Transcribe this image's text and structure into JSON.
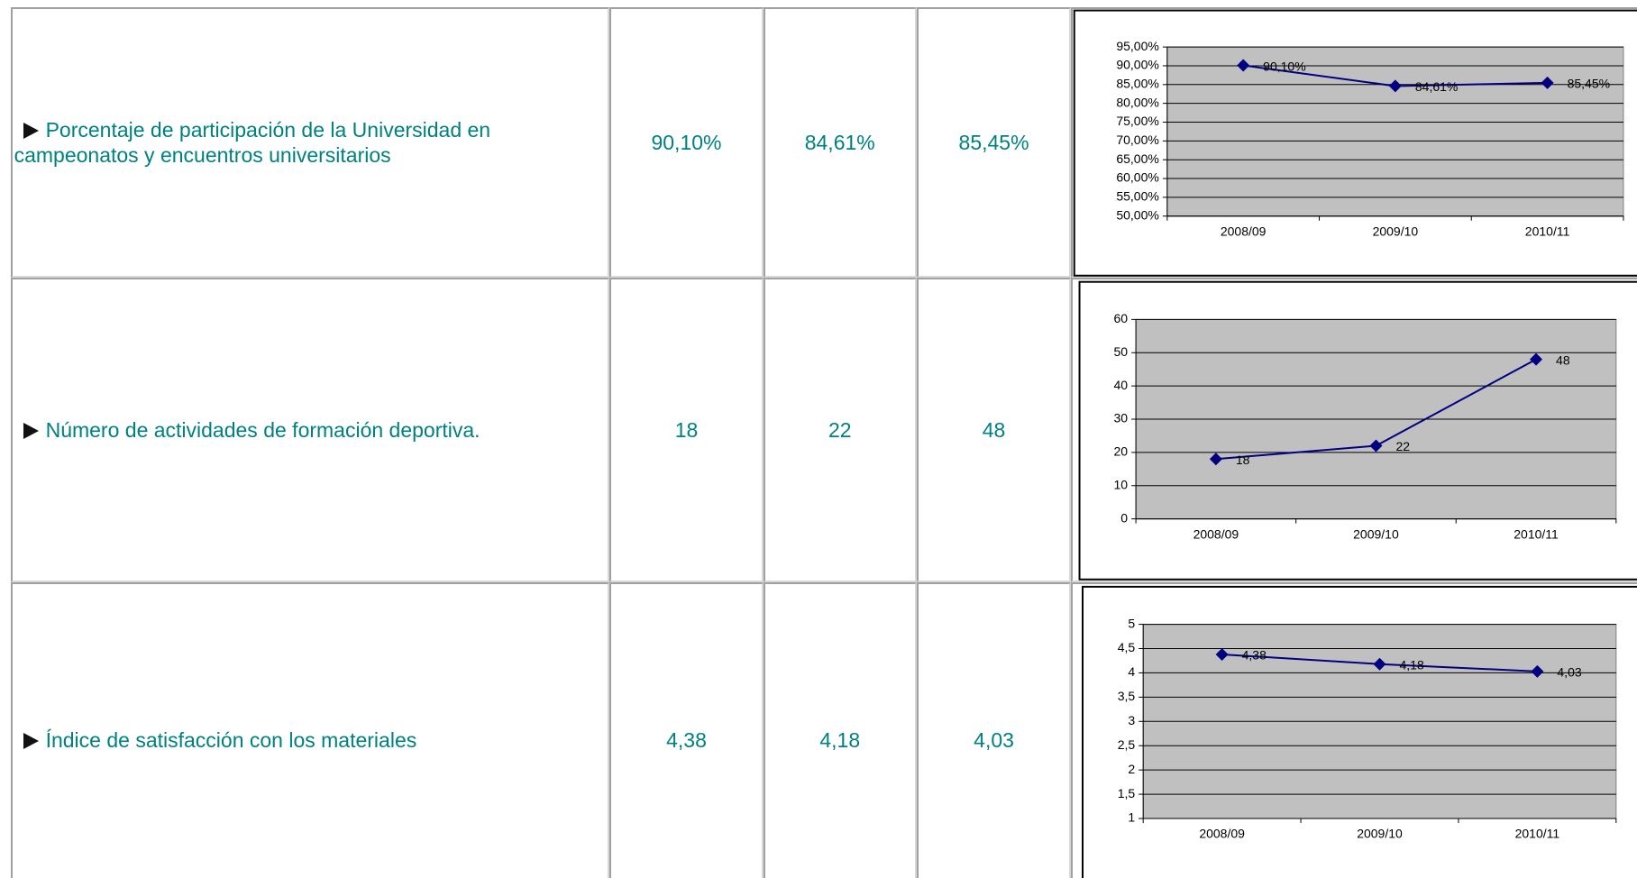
{
  "table": {
    "rows": [
      {
        "label": "Porcentaje de participación de la Universidad en campeonatos y encuentros universitarios",
        "cells": [
          "90,10%",
          "84,61%",
          "85,45%"
        ]
      },
      {
        "label": "Número de actividades de formación deportiva.",
        "cells": [
          "18",
          "22",
          "48"
        ]
      },
      {
        "label": "Índice de satisfacción con los materiales",
        "cells": [
          "4,38",
          "4,18",
          "4,03"
        ]
      }
    ]
  },
  "chart_data": [
    {
      "type": "line",
      "categories": [
        "2008/09",
        "2009/10",
        "2010/11"
      ],
      "values": [
        90.1,
        84.61,
        85.45
      ],
      "value_labels": [
        "90,10%",
        "84,61%",
        "85,45%"
      ],
      "color": "#000080",
      "grid": true,
      "ylim": [
        50,
        95
      ],
      "yticks": [
        {
          "value": 50,
          "label": "50,00%"
        },
        {
          "value": 55,
          "label": "55,00%"
        },
        {
          "value": 60,
          "label": "60,00%"
        },
        {
          "value": 65,
          "label": "65,00%"
        },
        {
          "value": 70,
          "label": "70,00%"
        },
        {
          "value": 75,
          "label": "75,00%"
        },
        {
          "value": 80,
          "label": "80,00%"
        },
        {
          "value": 85,
          "label": "85,00%"
        },
        {
          "value": 90,
          "label": "90,00%"
        },
        {
          "value": 95,
          "label": "95,00%"
        }
      ]
    },
    {
      "type": "line",
      "categories": [
        "2008/09",
        "2009/10",
        "2010/11"
      ],
      "values": [
        18,
        22,
        48
      ],
      "color": "#000080",
      "grid": true,
      "ylim": [
        0,
        60
      ],
      "yticks": [
        0,
        10,
        20,
        30,
        40,
        50,
        60
      ]
    },
    {
      "type": "line",
      "categories": [
        "2008/09",
        "2009/10",
        "2010/11"
      ],
      "values": [
        4.38,
        4.18,
        4.03
      ],
      "value_labels": [
        "4,38",
        "4,18",
        "4,03"
      ],
      "color": "#000080",
      "grid": true,
      "ylim": [
        1,
        5
      ],
      "yticks": [
        1,
        {
          "value": 1.5,
          "label": "1,5"
        },
        2,
        {
          "value": 2.5,
          "label": "2,5"
        },
        3,
        {
          "value": 3.5,
          "label": "3,5"
        },
        4,
        {
          "value": 4.5,
          "label": "4,5"
        },
        5
      ]
    }
  ]
}
